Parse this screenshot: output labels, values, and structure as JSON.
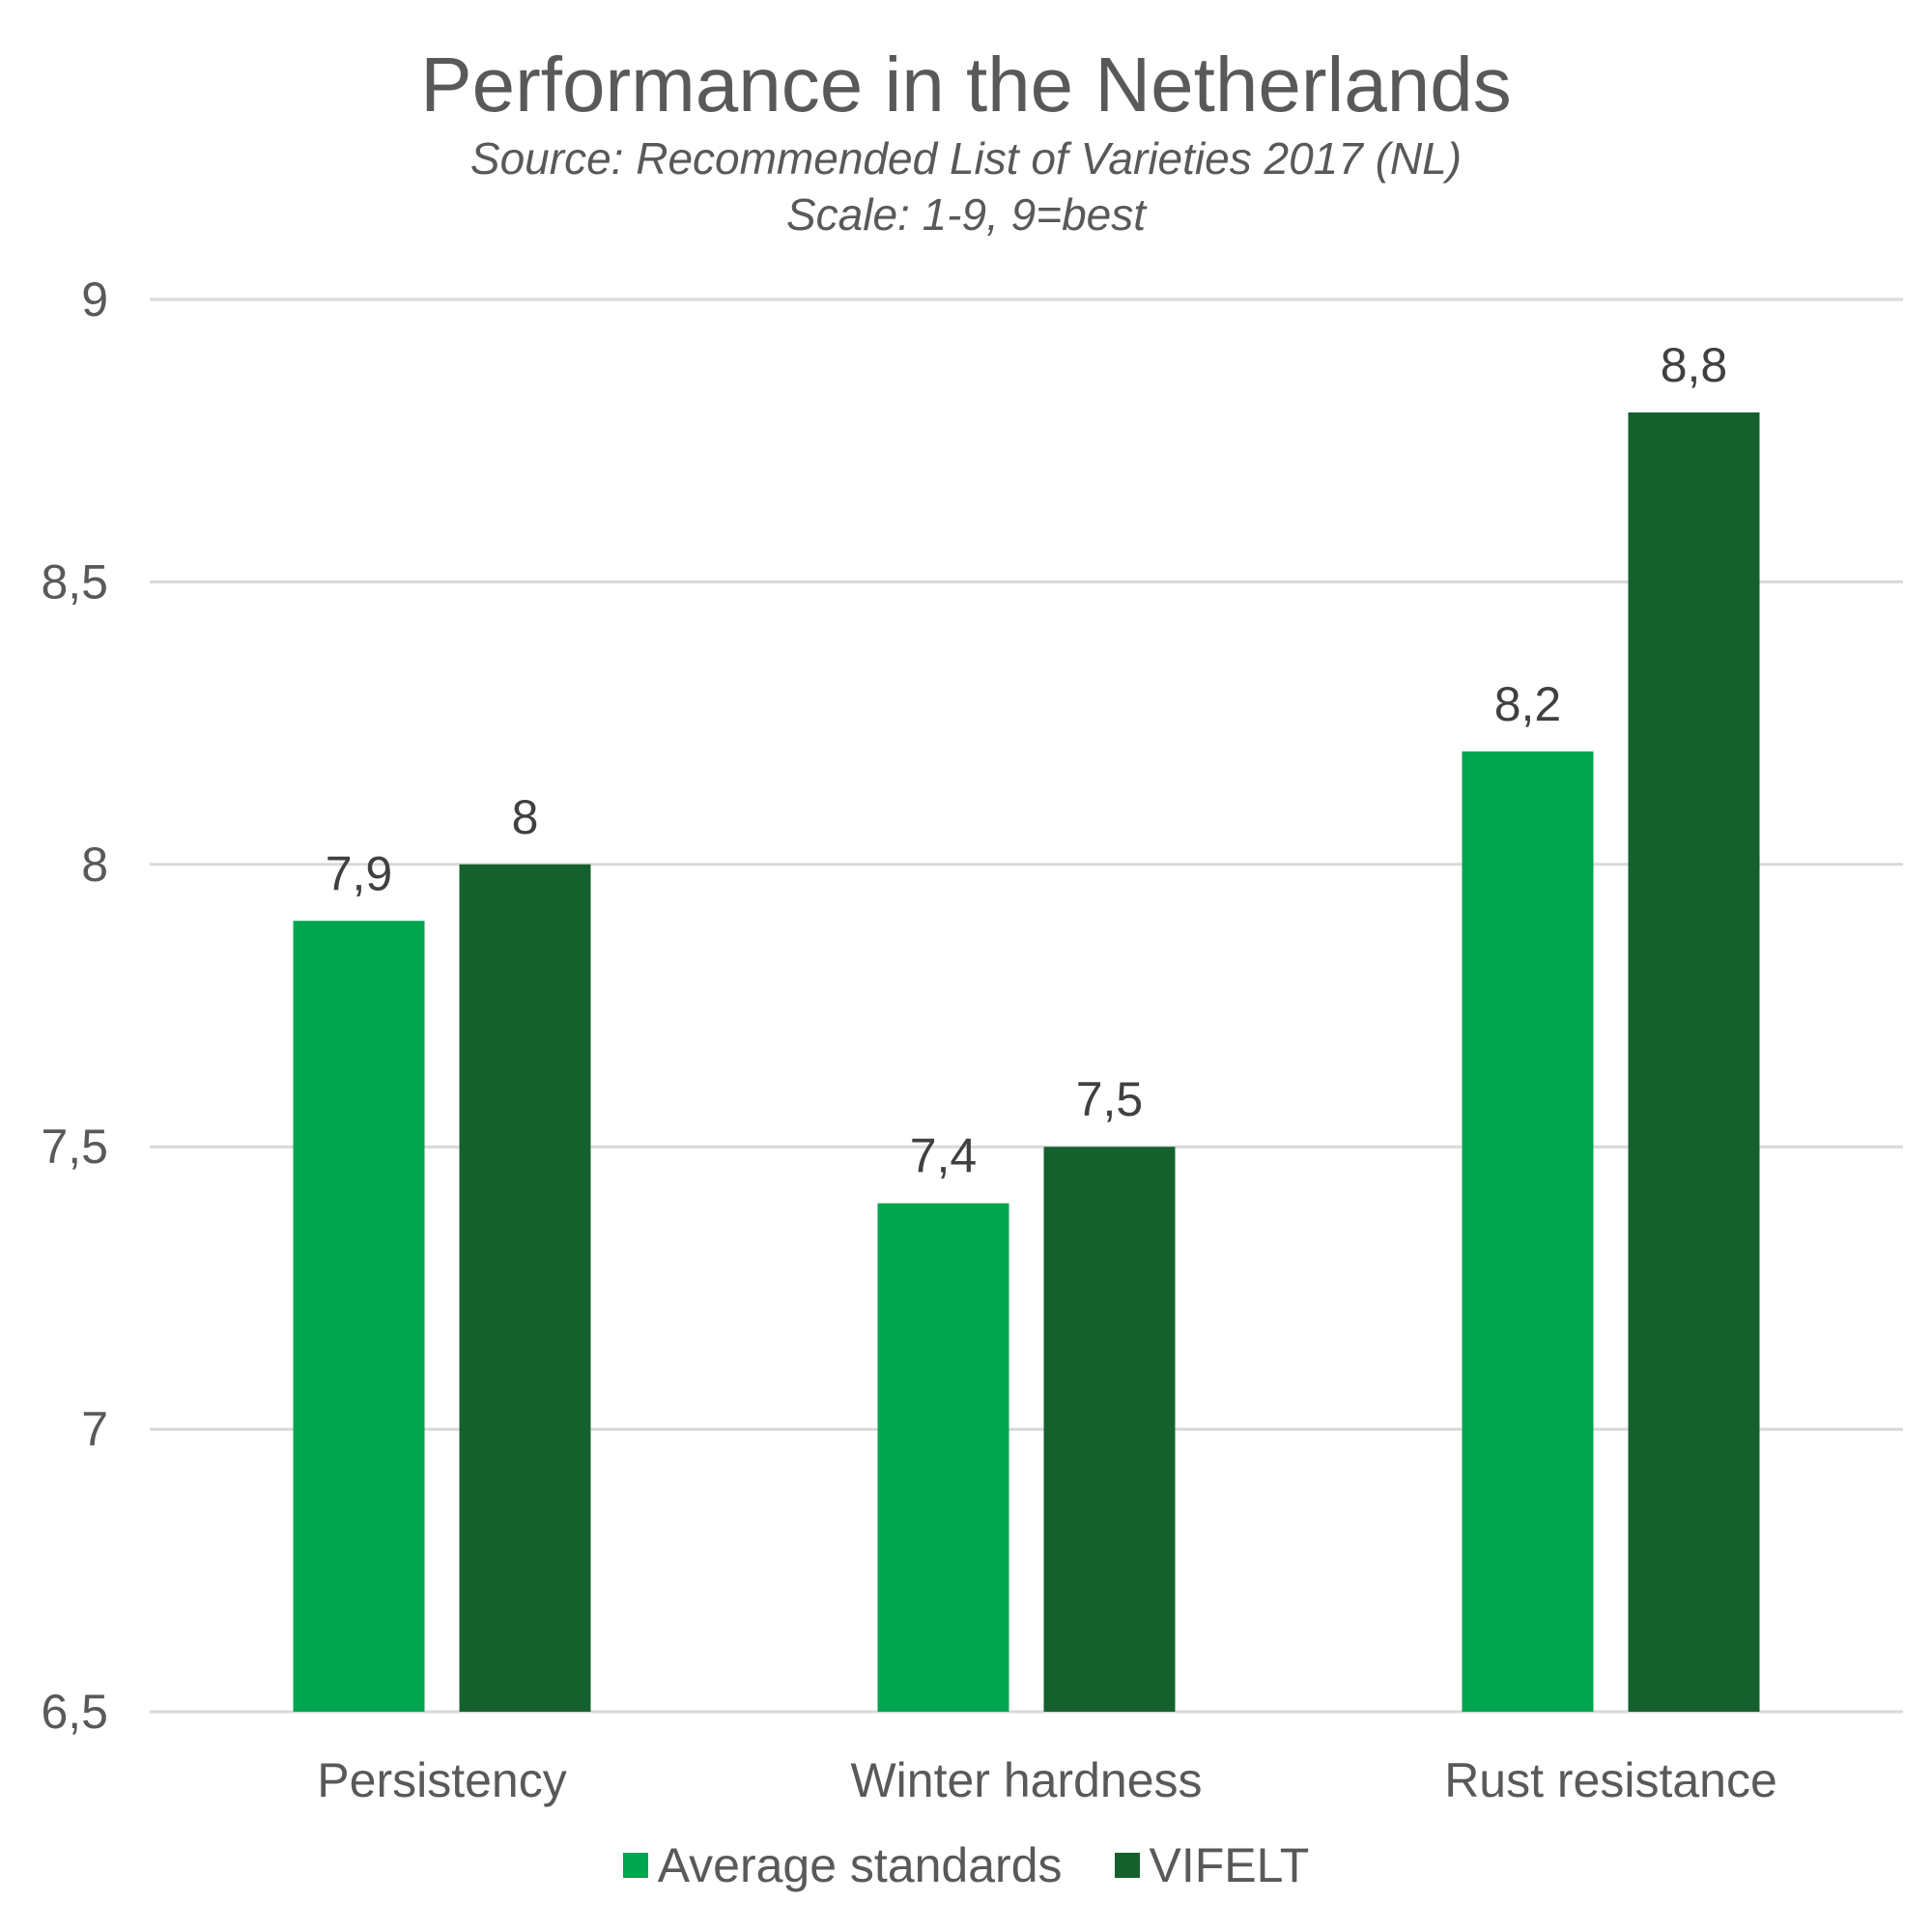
{
  "chart_data": {
    "type": "bar",
    "title": "Performance in the Netherlands",
    "subtitle_lines": [
      "Source: Recommended List of Varieties 2017 (NL)",
      "Scale: 1-9, 9=best"
    ],
    "xlabel": "",
    "ylabel": "",
    "ylim": [
      6.5,
      9
    ],
    "yticks": [
      "6,5",
      "7",
      "7,5",
      "8",
      "8,5",
      "9"
    ],
    "ytick_values": [
      6.5,
      7,
      7.5,
      8,
      8.5,
      9
    ],
    "categories": [
      "Persistency",
      "Winter hardness",
      "Rust resistance"
    ],
    "series": [
      {
        "name": "Average standards",
        "color": "#00A550",
        "values": [
          7.9,
          7.4,
          8.2
        ],
        "labels": [
          "7,9",
          "7,4",
          "8,2"
        ]
      },
      {
        "name": "VIFELT",
        "color": "#16602E",
        "values": [
          8.0,
          7.5,
          8.8
        ],
        "labels": [
          "8",
          "7,5",
          "8,8"
        ]
      }
    ],
    "grid": true,
    "legend": "bottom",
    "gridline_color": "#D9D9D9"
  }
}
